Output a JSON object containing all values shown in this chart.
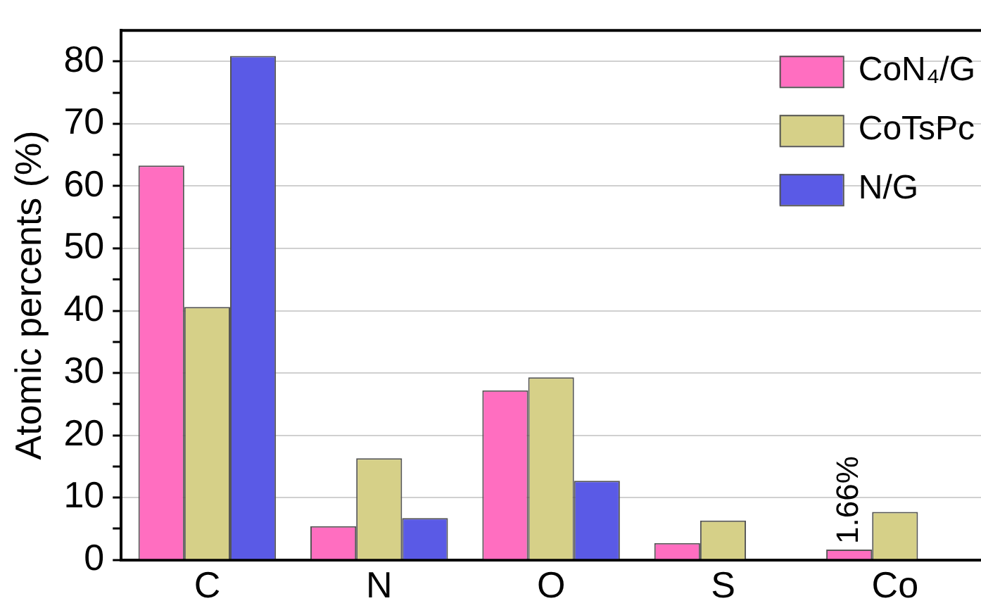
{
  "chart_data": {
    "type": "bar",
    "ylabel": "Atomic percents (%)",
    "categories": [
      "C",
      "N",
      "O",
      "S",
      "Co"
    ],
    "series": [
      {
        "name": "CoN₄/G",
        "color": "#ff6ec0",
        "values": [
          63.3,
          5.4,
          27.2,
          2.7,
          1.66
        ],
        "value_labels": [
          null,
          null,
          null,
          null,
          "1.66%"
        ]
      },
      {
        "name": "CoTsPc",
        "color": "#d6d088",
        "values": [
          40.6,
          16.3,
          29.3,
          6.3,
          7.7
        ]
      },
      {
        "name": "N/G",
        "color": "#5a5ae6",
        "values": [
          80.9,
          6.7,
          12.7,
          null,
          null
        ]
      }
    ],
    "ylim": [
      0,
      85
    ],
    "yticks": [
      0,
      {
        "value": 5,
        "label": null
      },
      10,
      {
        "value": 15,
        "label": null
      },
      20,
      {
        "value": 25,
        "label": null
      },
      30,
      {
        "value": 35,
        "label": null
      },
      40,
      {
        "value": 45,
        "label": null
      },
      50,
      {
        "value": 55,
        "label": null
      },
      60,
      {
        "value": 65,
        "label": null
      },
      70,
      {
        "value": 75,
        "label": null
      },
      80
    ],
    "grid": "y",
    "legend": "top right"
  }
}
